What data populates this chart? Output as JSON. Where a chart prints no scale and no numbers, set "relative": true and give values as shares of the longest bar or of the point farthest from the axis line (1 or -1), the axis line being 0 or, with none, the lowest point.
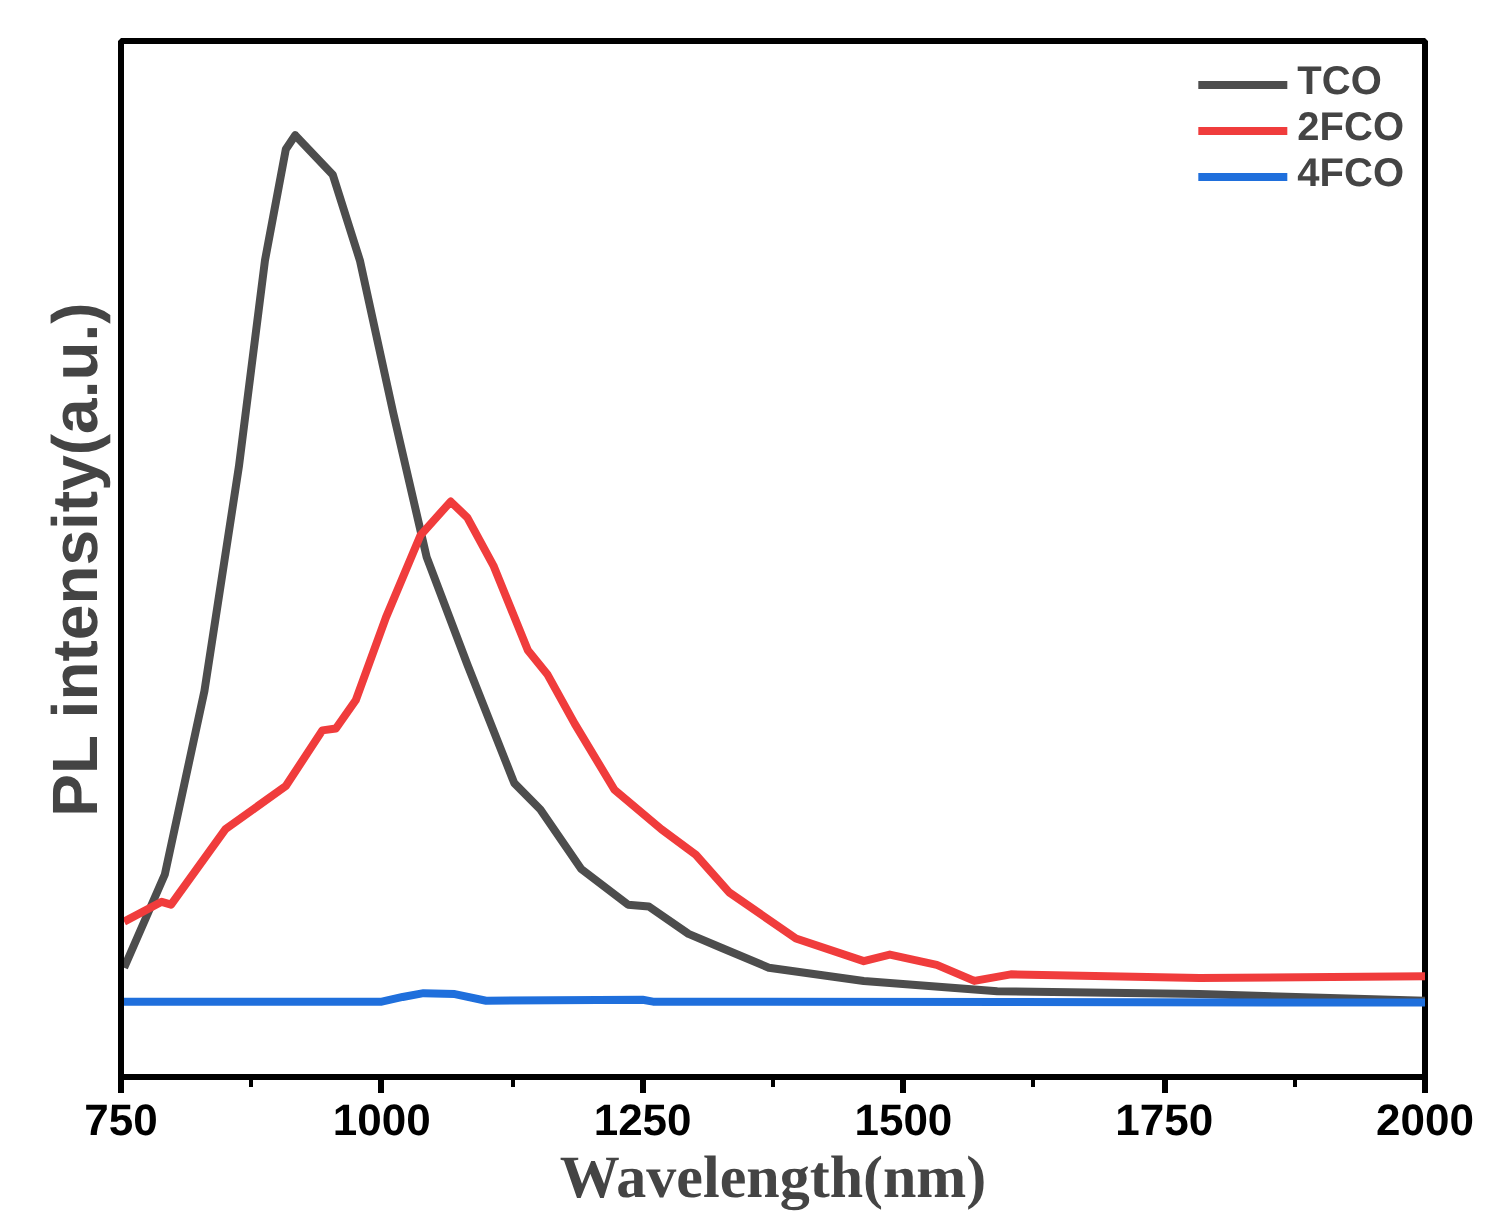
{
  "chart_data": {
    "type": "line",
    "relative": true,
    "xlabel": "Wavelength(nm)",
    "ylabel": "PL intensity(a.u.)",
    "xlim": [
      750,
      2000
    ],
    "xticks": [
      750,
      1000,
      1250,
      1500,
      1750,
      2000
    ],
    "tick_labels": "x",
    "legend": "top right",
    "grid": false,
    "marker": "none",
    "line_style": "solid",
    "series": [
      {
        "name": "TCO",
        "color": "#4d4d4d",
        "x": [
          753,
          792,
          830,
          863,
          888,
          908,
          917,
          953,
          979,
          1011,
          1043,
          1082,
          1127,
          1152,
          1191,
          1236,
          1256,
          1294,
          1326,
          1371,
          1462,
          1590,
          1784,
          2000
        ],
        "values": [
          0.116,
          0.215,
          0.41,
          0.648,
          0.867,
          0.985,
          1.0,
          0.958,
          0.867,
          0.705,
          0.552,
          0.438,
          0.312,
          0.284,
          0.221,
          0.183,
          0.181,
          0.152,
          0.137,
          0.116,
          0.102,
          0.091,
          0.088,
          0.081
        ]
      },
      {
        "name": "2FCO",
        "color": "#f03c3c",
        "x": [
          753,
          789,
          798,
          850,
          908,
          943,
          956,
          975,
          1004,
          1037,
          1066,
          1082,
          1107,
          1140,
          1159,
          1185,
          1223,
          1268,
          1301,
          1333,
          1397,
          1462,
          1487,
          1532,
          1568,
          1603,
          1784,
          2000
        ],
        "values": [
          0.165,
          0.186,
          0.183,
          0.263,
          0.309,
          0.368,
          0.37,
          0.4,
          0.488,
          0.575,
          0.611,
          0.594,
          0.543,
          0.453,
          0.427,
          0.375,
          0.305,
          0.263,
          0.236,
          0.196,
          0.147,
          0.123,
          0.13,
          0.119,
          0.102,
          0.109,
          0.105,
          0.107
        ]
      },
      {
        "name": "4FCO",
        "color": "#1f6fdc",
        "x": [
          750,
          1000,
          1020,
          1040,
          1070,
          1100,
          1250,
          1260,
          2000
        ],
        "values": [
          0.08,
          0.08,
          0.085,
          0.089,
          0.088,
          0.081,
          0.082,
          0.08,
          0.079
        ]
      }
    ]
  }
}
